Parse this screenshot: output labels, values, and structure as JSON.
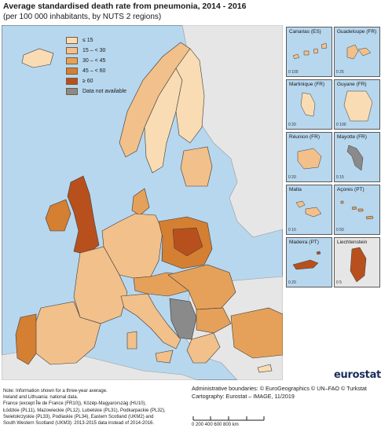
{
  "title": "Average standardised death rate from pneumonia, 2014 - 2016",
  "subtitle": "(per 100 000 inhabitants, by NUTS 2 regions)",
  "legend": [
    {
      "label": "≤ 15",
      "color": "#f9dcb4"
    },
    {
      "label": "15 – < 30",
      "color": "#f2c08a"
    },
    {
      "label": "30 – < 45",
      "color": "#e5a15a"
    },
    {
      "label": "45 – < 60",
      "color": "#d57f32"
    },
    {
      "label": "≥ 60",
      "color": "#b8501e"
    },
    {
      "label": "Data not available",
      "color": "#8a8a8a"
    }
  ],
  "colors": {
    "sea": "#b7d7ee",
    "non_eu": "#e6e6e6",
    "border": "#3a3a3a"
  },
  "insets": [
    {
      "name": "Canarias (ES)",
      "scale": "0    100"
    },
    {
      "name": "Guadeloupe (FR)",
      "scale": "0    25"
    },
    {
      "name": "Martinique (FR)",
      "scale": "0    20"
    },
    {
      "name": "Guyane (FR)",
      "scale": "0    100"
    },
    {
      "name": "Réunion (FR)",
      "scale": "0    20"
    },
    {
      "name": "Mayotte (FR)",
      "scale": "0    15"
    },
    {
      "name": "Malta",
      "scale": "0    10"
    },
    {
      "name": "Açores (PT)",
      "scale": "0    50"
    },
    {
      "name": "Madeira (PT)",
      "scale": "0    20"
    },
    {
      "name": "Liechtenstein",
      "scale": "0    5"
    }
  ],
  "note_lines": [
    "Note: Information shown for a three-year average.",
    "Ireland and Lithuania: national data.",
    "France (except Île de France (FR10)), Közép-Magyarország (HU10),",
    "Łódzkie (PL11), Mazowieckie (PL12), Lubelskie (PL31), Podkarpackie (PL32),",
    "Swietokrzyskie (PL33), Podlaskie (PL34), Eastern Scotland (UKM2) and",
    "South Western Scotland (UKM3): 2013-2015 data instead of 2014-2016."
  ],
  "credits": {
    "line1": "Administrative boundaries: © EuroGeographics © UN–FAO © Turkstat",
    "line2": "Cartography: Eurostat – IMAGE, 11/2019"
  },
  "scale": {
    "labels": "0     200   400   600   800 km"
  },
  "logo": "eurostat"
}
